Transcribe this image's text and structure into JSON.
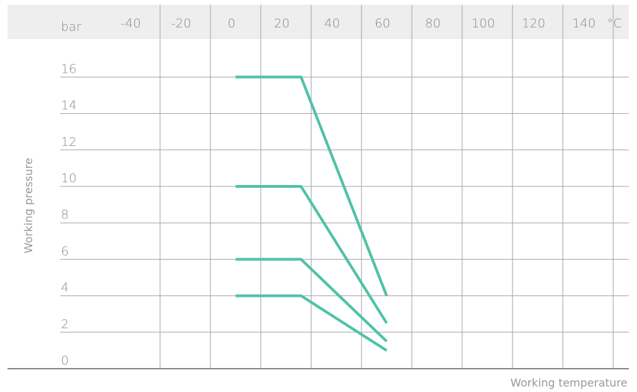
{
  "chart_data": {
    "type": "line",
    "title": "",
    "xlabel": "Working temperature",
    "ylabel": "Working pressure",
    "x_unit": "°C",
    "y_unit": "bar",
    "x_ticks": [
      -40,
      -20,
      0,
      20,
      40,
      60,
      80,
      100,
      120,
      140
    ],
    "y_ticks": [
      0,
      2,
      4,
      6,
      8,
      10,
      12,
      14,
      16
    ],
    "xlim": [
      -50,
      160
    ],
    "ylim": [
      0,
      17
    ],
    "grid": true,
    "colors": {
      "series": "#4fc2a8",
      "grid": "#a5a5a5",
      "header_band": "#eeeeee",
      "axis": "#888888"
    },
    "series": [
      {
        "x": [
          0,
          26,
          60
        ],
        "y": [
          16,
          16,
          4
        ]
      },
      {
        "x": [
          0,
          26,
          60
        ],
        "y": [
          10,
          10,
          2.5
        ]
      },
      {
        "x": [
          0,
          26,
          60
        ],
        "y": [
          6,
          6,
          1.5
        ]
      },
      {
        "x": [
          0,
          26,
          60
        ],
        "y": [
          4,
          4,
          1
        ]
      }
    ]
  }
}
